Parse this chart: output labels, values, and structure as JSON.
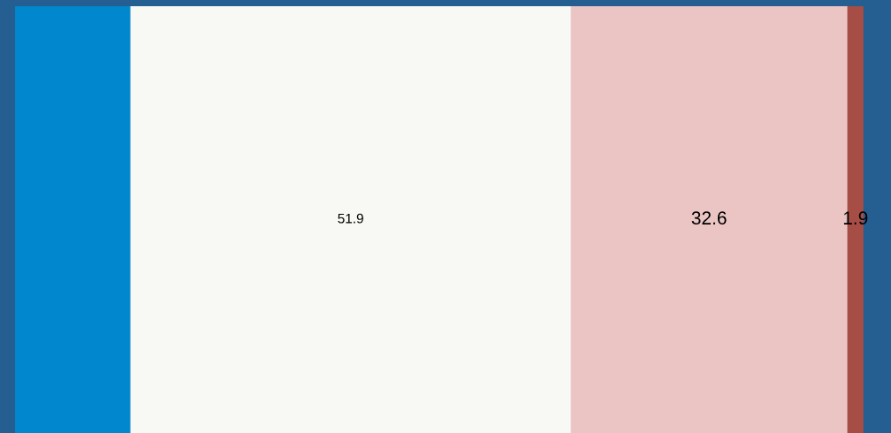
{
  "chart_data": {
    "type": "bar",
    "orientation": "horizontal",
    "stacked": true,
    "categories": [
      null
    ],
    "xlim": [
      0,
      100
    ],
    "grid": false,
    "legend": false,
    "series": [
      {
        "color": "#0087cd",
        "values": [
          13.6
        ],
        "value_labels": [
          null
        ]
      },
      {
        "color": "#f8f9f4",
        "values": [
          51.9
        ],
        "value_labels": [
          "51.9"
        ]
      },
      {
        "color": "#ebc5c4",
        "values": [
          32.6
        ],
        "value_labels": [
          "32.6"
        ]
      },
      {
        "color": "#a64d45",
        "values": [
          1.9
        ],
        "value_labels": [
          "1.9"
        ]
      }
    ]
  }
}
